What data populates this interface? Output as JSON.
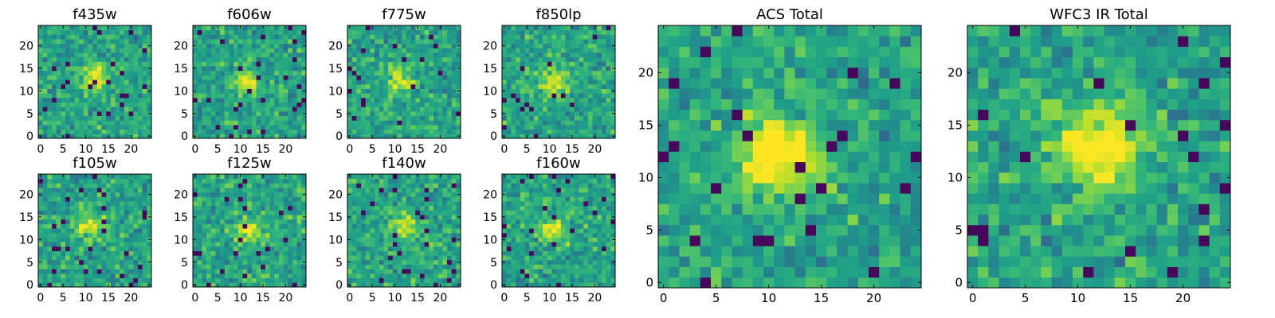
{
  "chart_data": [
    {
      "type": "heatmap",
      "title": "f435w",
      "xlabel": "",
      "ylabel": "",
      "xlim": [
        0,
        25
      ],
      "ylim": [
        0,
        25
      ],
      "xticks": [
        0,
        5,
        10,
        15,
        20
      ],
      "yticks": [
        0,
        5,
        10,
        15,
        20
      ],
      "grid": false,
      "colormap": "viridis",
      "source_peak": [
        12,
        13
      ]
    },
    {
      "type": "heatmap",
      "title": "f606w",
      "xlabel": "",
      "ylabel": "",
      "xlim": [
        0,
        25
      ],
      "ylim": [
        0,
        25
      ],
      "xticks": [
        0,
        5,
        10,
        15,
        20
      ],
      "yticks": [
        0,
        5,
        10,
        15,
        20
      ],
      "grid": false,
      "colormap": "viridis",
      "source_peak": [
        11,
        12
      ]
    },
    {
      "type": "heatmap",
      "title": "f775w",
      "xlabel": "",
      "ylabel": "",
      "xlim": [
        0,
        25
      ],
      "ylim": [
        0,
        25
      ],
      "xticks": [
        0,
        5,
        10,
        15,
        20
      ],
      "yticks": [
        0,
        5,
        10,
        15,
        20
      ],
      "grid": false,
      "colormap": "viridis",
      "source_peak": [
        11,
        13
      ]
    },
    {
      "type": "heatmap",
      "title": "f850lp",
      "xlabel": "",
      "ylabel": "",
      "xlim": [
        0,
        25
      ],
      "ylim": [
        0,
        25
      ],
      "xticks": [
        0,
        5,
        10,
        15,
        20
      ],
      "yticks": [
        0,
        5,
        10,
        15,
        20
      ],
      "grid": false,
      "colormap": "viridis",
      "source_peak": [
        11,
        12
      ]
    },
    {
      "type": "heatmap",
      "title": "f105w",
      "xlabel": "",
      "ylabel": "",
      "xlim": [
        0,
        25
      ],
      "ylim": [
        0,
        25
      ],
      "xticks": [
        0,
        5,
        10,
        15,
        20
      ],
      "yticks": [
        0,
        5,
        10,
        15,
        20
      ],
      "grid": false,
      "colormap": "viridis",
      "source_peak": [
        11,
        13
      ]
    },
    {
      "type": "heatmap",
      "title": "f125w",
      "xlabel": "",
      "ylabel": "",
      "xlim": [
        0,
        25
      ],
      "ylim": [
        0,
        25
      ],
      "xticks": [
        0,
        5,
        10,
        15,
        20
      ],
      "yticks": [
        0,
        5,
        10,
        15,
        20
      ],
      "grid": false,
      "colormap": "viridis",
      "source_peak": [
        12,
        12
      ]
    },
    {
      "type": "heatmap",
      "title": "f140w",
      "xlabel": "",
      "ylabel": "",
      "xlim": [
        0,
        25
      ],
      "ylim": [
        0,
        25
      ],
      "xticks": [
        0,
        5,
        10,
        15,
        20
      ],
      "yticks": [
        0,
        5,
        10,
        15,
        20
      ],
      "grid": false,
      "colormap": "viridis",
      "source_peak": [
        12,
        13
      ]
    },
    {
      "type": "heatmap",
      "title": "f160w",
      "xlabel": "",
      "ylabel": "",
      "xlim": [
        0,
        25
      ],
      "ylim": [
        0,
        25
      ],
      "xticks": [
        0,
        5,
        10,
        15,
        20
      ],
      "yticks": [
        0,
        5,
        10,
        15,
        20
      ],
      "grid": false,
      "colormap": "viridis",
      "source_peak": [
        11,
        12
      ]
    },
    {
      "type": "heatmap",
      "title": "ACS Total",
      "xlabel": "",
      "ylabel": "",
      "xlim": [
        0,
        25
      ],
      "ylim": [
        0,
        25
      ],
      "xticks": [
        0,
        5,
        10,
        15,
        20
      ],
      "yticks": [
        0,
        5,
        10,
        15,
        20
      ],
      "grid": false,
      "colormap": "viridis",
      "source_peak": [
        11,
        12
      ]
    },
    {
      "type": "heatmap",
      "title": "WFC3 IR Total",
      "xlabel": "",
      "ylabel": "",
      "xlim": [
        0,
        25
      ],
      "ylim": [
        0,
        25
      ],
      "xticks": [
        0,
        5,
        10,
        15,
        20
      ],
      "yticks": [
        0,
        5,
        10,
        15,
        20
      ],
      "grid": false,
      "colormap": "viridis",
      "source_peak": [
        12,
        13
      ]
    }
  ],
  "colors": {
    "viridis_low": "#440154",
    "viridis_mid": "#21918c",
    "viridis_high": "#fde725",
    "axis": "#000000"
  }
}
